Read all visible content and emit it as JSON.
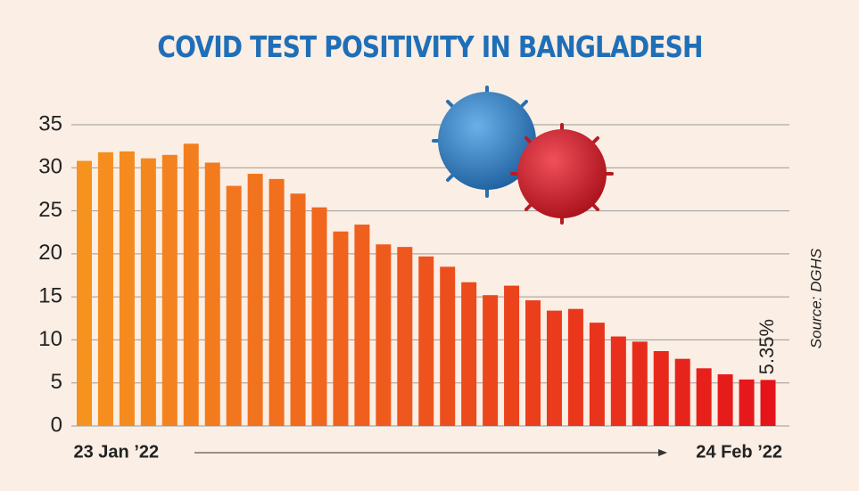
{
  "chart_data": {
    "type": "bar",
    "title": "COVID TEST POSITIVITY IN BANGLADESH",
    "categories": [
      "23 Jan ’22",
      null,
      null,
      null,
      null,
      null,
      null,
      null,
      null,
      null,
      null,
      null,
      null,
      null,
      null,
      null,
      null,
      null,
      null,
      null,
      null,
      null,
      null,
      null,
      null,
      null,
      null,
      null,
      null,
      null,
      null,
      null,
      "24 Feb ’22"
    ],
    "values": [
      30.8,
      31.8,
      31.9,
      31.1,
      31.5,
      32.8,
      30.6,
      27.9,
      29.3,
      28.7,
      27.0,
      25.4,
      22.6,
      23.4,
      21.1,
      20.8,
      19.7,
      18.5,
      16.7,
      15.2,
      16.3,
      14.6,
      13.4,
      13.6,
      12.0,
      10.4,
      9.8,
      8.7,
      7.8,
      6.7,
      6.0,
      5.4,
      5.35
    ],
    "value_labels": [
      null,
      null,
      null,
      null,
      null,
      null,
      null,
      null,
      null,
      null,
      null,
      null,
      null,
      null,
      null,
      null,
      null,
      null,
      null,
      null,
      null,
      null,
      null,
      null,
      null,
      null,
      null,
      null,
      null,
      null,
      null,
      null,
      "5.35%"
    ],
    "colors": [
      "#f6921e",
      "#e5141b"
    ],
    "ylim": [
      0,
      35
    ],
    "yticks": [
      0,
      5,
      10,
      15,
      20,
      25,
      30,
      35
    ],
    "grid": true,
    "source": "Source: DGHS"
  }
}
